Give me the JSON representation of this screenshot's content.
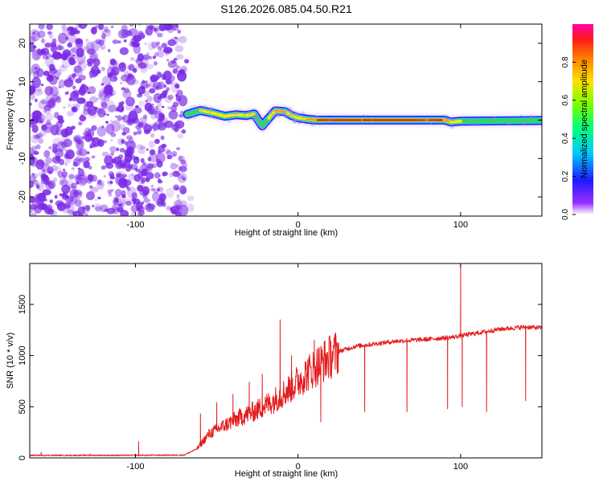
{
  "title": "S126.2026.085.04.50.R21",
  "colors": {
    "snr_line": "#e41a1c",
    "axis": "#000000",
    "speckle": "#7a28e6",
    "ridge_red": "#e8161e",
    "ridge_green": "#2ed85a",
    "ridge_blue": "#1b33ff"
  },
  "chart_data": [
    {
      "type": "heatmap",
      "name": "spectrogram",
      "xlabel": "Height of straight line (km)",
      "ylabel": "Frequency (Hz)",
      "xlim": [
        -165,
        150
      ],
      "ylim": [
        -25,
        25
      ],
      "x_ticks": [
        -100,
        0,
        100
      ],
      "y_ticks": [
        -20,
        -10,
        0,
        10,
        20
      ],
      "noise_region_x": [
        -165,
        -70
      ],
      "ridge": [
        {
          "x": -68,
          "y": 1.5,
          "amp": 0.35
        },
        {
          "x": -60,
          "y": 2.5,
          "amp": 0.55
        },
        {
          "x": -52,
          "y": 1.8,
          "amp": 0.55
        },
        {
          "x": -45,
          "y": 1.0,
          "amp": 0.8
        },
        {
          "x": -38,
          "y": 1.4,
          "amp": 0.55
        },
        {
          "x": -32,
          "y": 1.2,
          "amp": 0.7
        },
        {
          "x": -27,
          "y": 1.6,
          "amp": 0.5
        },
        {
          "x": -22,
          "y": -1.5,
          "amp": 0.45
        },
        {
          "x": -18,
          "y": 0.5,
          "amp": 0.5
        },
        {
          "x": -14,
          "y": 2.4,
          "amp": 0.9
        },
        {
          "x": -8,
          "y": 2.2,
          "amp": 0.75
        },
        {
          "x": -4,
          "y": 1.2,
          "amp": 0.55
        },
        {
          "x": 0,
          "y": 0.6,
          "amp": 0.8
        },
        {
          "x": 6,
          "y": 0.2,
          "amp": 0.55
        },
        {
          "x": 12,
          "y": 0.0,
          "amp": 0.95
        },
        {
          "x": 40,
          "y": 0.0,
          "amp": 1.0
        },
        {
          "x": 80,
          "y": 0.0,
          "amp": 1.0
        },
        {
          "x": 90,
          "y": 0.0,
          "amp": 0.95
        },
        {
          "x": 94,
          "y": -0.5,
          "amp": 0.7
        },
        {
          "x": 100,
          "y": -0.3,
          "amp": 0.45
        },
        {
          "x": 120,
          "y": -0.2,
          "amp": 0.5
        },
        {
          "x": 150,
          "y": -0.1,
          "amp": 0.4
        }
      ],
      "colorbar": {
        "label": "Normalized spectral amplitude",
        "range": [
          0,
          1
        ],
        "ticks": [
          "0.0",
          "0.2",
          "0.4",
          "0.6",
          "0.8"
        ]
      }
    },
    {
      "type": "line",
      "name": "snr",
      "xlabel": "Height of straight line (km)",
      "ylabel": "SNR (10 * v/v)",
      "xlim": [
        -165,
        150
      ],
      "ylim": [
        0,
        1900
      ],
      "x_ticks": [
        -100,
        0,
        100
      ],
      "y_ticks": [
        0,
        500,
        1000,
        1500
      ],
      "series": [
        {
          "name": "SNR",
          "baseline": [
            {
              "x": -165,
              "y": 25
            },
            {
              "x": -140,
              "y": 25
            },
            {
              "x": -100,
              "y": 25
            },
            {
              "x": -70,
              "y": 28
            },
            {
              "x": -62,
              "y": 90
            },
            {
              "x": -55,
              "y": 230
            },
            {
              "x": -45,
              "y": 320
            },
            {
              "x": -35,
              "y": 400
            },
            {
              "x": -25,
              "y": 470
            },
            {
              "x": -15,
              "y": 560
            },
            {
              "x": -5,
              "y": 680
            },
            {
              "x": 5,
              "y": 820
            },
            {
              "x": 15,
              "y": 940
            },
            {
              "x": 25,
              "y": 1040
            },
            {
              "x": 35,
              "y": 1090
            },
            {
              "x": 45,
              "y": 1110
            },
            {
              "x": 60,
              "y": 1140
            },
            {
              "x": 80,
              "y": 1160
            },
            {
              "x": 95,
              "y": 1180
            },
            {
              "x": 110,
              "y": 1220
            },
            {
              "x": 125,
              "y": 1260
            },
            {
              "x": 140,
              "y": 1280
            },
            {
              "x": 150,
              "y": 1270
            }
          ],
          "spikes": [
            {
              "x": -158,
              "y": 55
            },
            {
              "x": -128,
              "y": 40
            },
            {
              "x": -98,
              "y": 160
            },
            {
              "x": -60,
              "y": 430
            },
            {
              "x": -50,
              "y": 540
            },
            {
              "x": -40,
              "y": 620
            },
            {
              "x": -30,
              "y": 740
            },
            {
              "x": -22,
              "y": 820
            },
            {
              "x": -11,
              "y": 1350
            },
            {
              "x": -4,
              "y": 1000
            },
            {
              "x": 10,
              "y": 1150
            },
            {
              "x": 14,
              "y": 350
            },
            {
              "x": 41,
              "y": 450
            },
            {
              "x": 67,
              "y": 450
            },
            {
              "x": 92,
              "y": 480
            },
            {
              "x": 100,
              "y": 1880
            },
            {
              "x": 101,
              "y": 500
            },
            {
              "x": 116,
              "y": 450
            },
            {
              "x": 140,
              "y": 560
            }
          ]
        }
      ]
    }
  ]
}
